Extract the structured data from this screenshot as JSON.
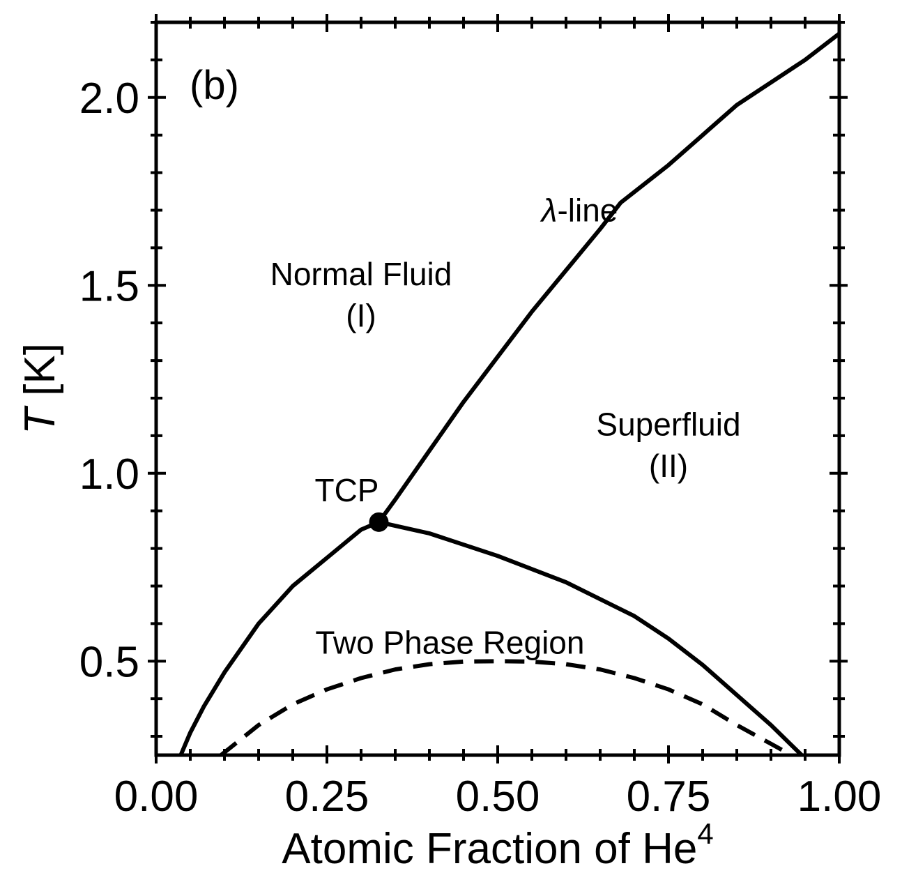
{
  "chart_data": {
    "type": "line",
    "panel_label": "(b)",
    "xlabel": "Atomic Fraction of He",
    "xlabel_sup": "4",
    "ylabel_italic": "T",
    "ylabel_rest": " [K]",
    "xlim": [
      0.0,
      1.0
    ],
    "ylim": [
      0.25,
      2.2
    ],
    "xticks": [
      {
        "value": 0.0,
        "label": "0.00"
      },
      {
        "value": 0.25,
        "label": "0.25"
      },
      {
        "value": 0.5,
        "label": "0.50"
      },
      {
        "value": 0.75,
        "label": "0.75"
      },
      {
        "value": 1.0,
        "label": "1.00"
      }
    ],
    "yticks": [
      {
        "value": 0.5,
        "label": "0.5"
      },
      {
        "value": 1.0,
        "label": "1.0"
      },
      {
        "value": 1.5,
        "label": "1.5"
      },
      {
        "value": 2.0,
        "label": "2.0"
      }
    ],
    "x_minor_step": 0.05,
    "y_minor_step": 0.1,
    "grid": false,
    "series": [
      {
        "style": "solid",
        "x": [
          0.326,
          0.35,
          0.4,
          0.45,
          0.5,
          0.55,
          0.6,
          0.65,
          0.68,
          0.75,
          0.8,
          0.85,
          0.9,
          0.95,
          1.0
        ],
        "y": [
          0.87,
          0.93,
          1.06,
          1.19,
          1.31,
          1.43,
          1.54,
          1.65,
          1.72,
          1.82,
          1.9,
          1.98,
          2.04,
          2.1,
          2.17
        ]
      },
      {
        "style": "solid",
        "x": [
          0.326,
          0.3,
          0.26,
          0.2,
          0.15,
          0.1,
          0.07,
          0.05,
          0.036
        ],
        "y": [
          0.87,
          0.85,
          0.79,
          0.7,
          0.6,
          0.47,
          0.38,
          0.31,
          0.25
        ]
      },
      {
        "style": "solid",
        "x": [
          0.326,
          0.4,
          0.5,
          0.6,
          0.7,
          0.75,
          0.8,
          0.85,
          0.9,
          0.945
        ],
        "y": [
          0.87,
          0.84,
          0.78,
          0.71,
          0.62,
          0.56,
          0.49,
          0.41,
          0.33,
          0.25
        ]
      },
      {
        "style": "dashed",
        "x": [
          0.095,
          0.15,
          0.2,
          0.25,
          0.3,
          0.35,
          0.4,
          0.45,
          0.5,
          0.55,
          0.6,
          0.65,
          0.7,
          0.75,
          0.8,
          0.85,
          0.9,
          0.93
        ],
        "y": [
          0.25,
          0.33,
          0.385,
          0.425,
          0.455,
          0.478,
          0.492,
          0.499,
          0.5,
          0.499,
          0.492,
          0.478,
          0.455,
          0.425,
          0.385,
          0.33,
          0.28,
          0.25
        ]
      }
    ],
    "tcp_point": {
      "x": 0.326,
      "y": 0.87,
      "label": "TCP"
    },
    "annotations": [
      {
        "id": "lambda",
        "greek": "λ",
        "text": "-line",
        "x": 0.62,
        "y": 1.7
      },
      {
        "id": "normal1",
        "text": "Normal Fluid",
        "x": 0.3,
        "y": 1.53
      },
      {
        "id": "normal2",
        "text": "(I)",
        "x": 0.3,
        "y": 1.42
      },
      {
        "id": "super1",
        "text": "Superfluid",
        "x": 0.75,
        "y": 1.13
      },
      {
        "id": "super2",
        "text": "(II)",
        "x": 0.75,
        "y": 1.02
      },
      {
        "id": "twophase",
        "text": "Two Phase Region",
        "x": 0.43,
        "y": 0.55
      }
    ]
  }
}
